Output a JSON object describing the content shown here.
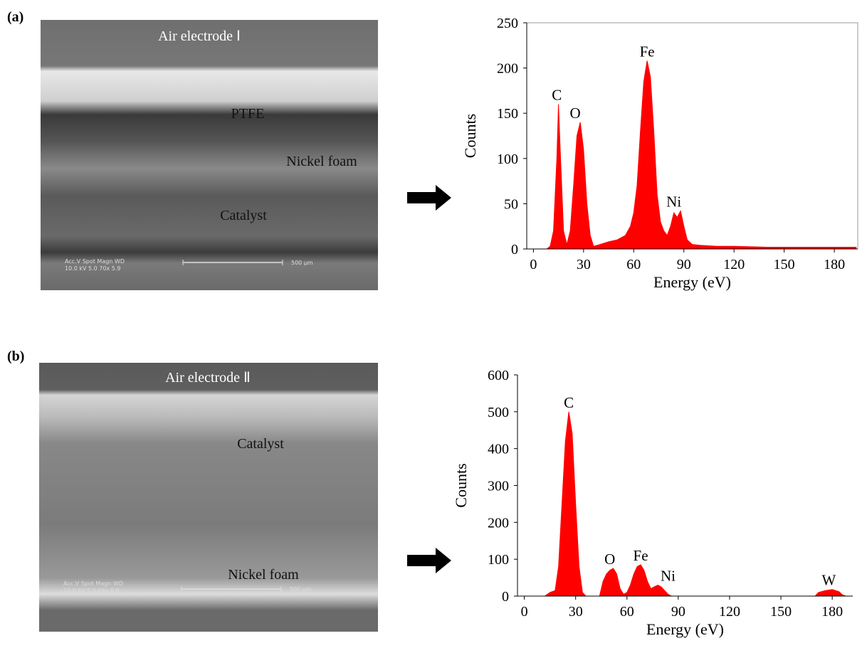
{
  "panels": [
    {
      "label": "(a)",
      "image_labels": [
        "Air electrode Ⅰ",
        "PTFE",
        "Nickel foam",
        "Catalyst"
      ],
      "info": [
        "Acc.V  Spot Magn    WD",
        "10.0 kV 5.0   70x      5.9"
      ],
      "scale": "500 µm"
    },
    {
      "label": "(b)",
      "image_labels": [
        "Air electrode Ⅱ",
        "Catalyst",
        "Nickel foam"
      ],
      "info": [
        "Acc.V  Spot Magn    WD",
        "10.0 kV 5.0   69x      6.9"
      ],
      "scale": "500 µm"
    }
  ],
  "chart_data": [
    {
      "type": "area",
      "x_label": "Energy (eV)",
      "y_label": "Counts",
      "color": "#ff0000",
      "frame": true,
      "x": [
        8,
        10,
        12,
        14,
        15,
        16,
        18,
        20,
        22,
        24,
        26,
        28,
        30,
        32,
        34,
        36,
        40,
        45,
        50,
        55,
        58,
        60,
        62,
        64,
        66,
        68,
        70,
        72,
        74,
        76,
        78,
        80,
        82,
        84,
        86,
        88,
        90,
        92,
        95,
        100,
        110,
        120,
        140,
        160,
        180,
        193
      ],
      "values": [
        0,
        3,
        20,
        100,
        160,
        110,
        20,
        5,
        20,
        70,
        125,
        140,
        110,
        50,
        15,
        3,
        5,
        8,
        10,
        15,
        25,
        40,
        70,
        130,
        185,
        208,
        190,
        130,
        60,
        30,
        20,
        15,
        25,
        40,
        35,
        42,
        25,
        10,
        5,
        4,
        3,
        3,
        2,
        2,
        2,
        2
      ],
      "xlim": [
        -4,
        194
      ],
      "xticks": [
        0,
        30,
        60,
        90,
        120,
        150,
        180
      ],
      "ylim": [
        0,
        250
      ],
      "yticks": [
        0,
        50,
        100,
        150,
        200,
        250
      ],
      "annotations": [
        {
          "text": "C",
          "x": 14,
          "y": 160
        },
        {
          "text": "O",
          "x": 25,
          "y": 140
        },
        {
          "text": "Fe",
          "x": 68,
          "y": 208
        },
        {
          "text": "Ni",
          "x": 84,
          "y": 42
        }
      ]
    },
    {
      "type": "area",
      "x_label": "Energy (eV)",
      "y_label": "Counts",
      "color": "#ff0000",
      "frame": false,
      "x": [
        12,
        15,
        18,
        20,
        22,
        24,
        26,
        28,
        30,
        32,
        34,
        36,
        44,
        46,
        48,
        50,
        52,
        54,
        56,
        58,
        60,
        62,
        64,
        66,
        68,
        70,
        72,
        74,
        76,
        78,
        80,
        82,
        84,
        86,
        170,
        172,
        176,
        180,
        184,
        186,
        188
      ],
      "values": [
        0,
        10,
        15,
        80,
        250,
        420,
        500,
        440,
        250,
        80,
        10,
        0,
        0,
        40,
        60,
        70,
        75,
        60,
        20,
        5,
        10,
        30,
        60,
        80,
        85,
        70,
        40,
        20,
        25,
        30,
        25,
        15,
        5,
        0,
        0,
        10,
        15,
        18,
        12,
        3,
        0
      ],
      "xlim": [
        -4,
        192
      ],
      "xticks": [
        0,
        30,
        60,
        90,
        120,
        150,
        180
      ],
      "ylim": [
        0,
        600
      ],
      "yticks": [
        0,
        100,
        200,
        300,
        400,
        500,
        600
      ],
      "annotations": [
        {
          "text": "C",
          "x": 26,
          "y": 500
        },
        {
          "text": "O",
          "x": 50,
          "y": 75
        },
        {
          "text": "Fe",
          "x": 68,
          "y": 85
        },
        {
          "text": "Ni",
          "x": 84,
          "y": 30
        },
        {
          "text": "W",
          "x": 178,
          "y": 18
        }
      ]
    }
  ]
}
